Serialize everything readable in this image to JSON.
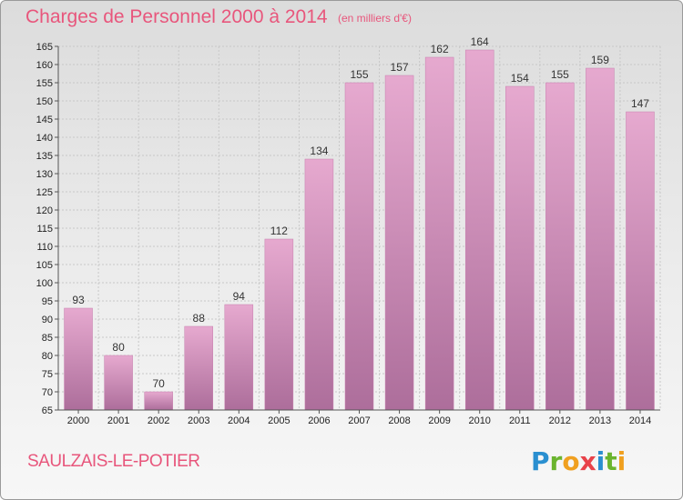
{
  "header": {
    "title": "Charges de Personnel 2000 à 2014",
    "subtitle": "(en milliers d'€)"
  },
  "footer": {
    "commune": "SAULZAIS-LE-POTIER",
    "logo_letters": [
      "P",
      "r",
      "o",
      "x",
      "i",
      "t",
      "i"
    ]
  },
  "colors": {
    "title": "#e8567c",
    "bar_top": "#e6a9cf",
    "bar_bottom": "#ad6e9b",
    "grid": "#c8c8c8"
  },
  "chart_data": {
    "type": "bar",
    "title": "Charges de Personnel 2000 à 2014",
    "subtitle": "(en milliers d'€)",
    "categories": [
      "2000",
      "2001",
      "2002",
      "2003",
      "2004",
      "2005",
      "2006",
      "2007",
      "2008",
      "2009",
      "2010",
      "2011",
      "2012",
      "2013",
      "2014"
    ],
    "values": [
      93,
      80,
      70,
      88,
      94,
      112,
      134,
      155,
      157,
      162,
      164,
      154,
      155,
      159,
      147
    ],
    "ylim": [
      65,
      165
    ],
    "ytick_step": 5,
    "grid": true,
    "data_labels": true
  }
}
